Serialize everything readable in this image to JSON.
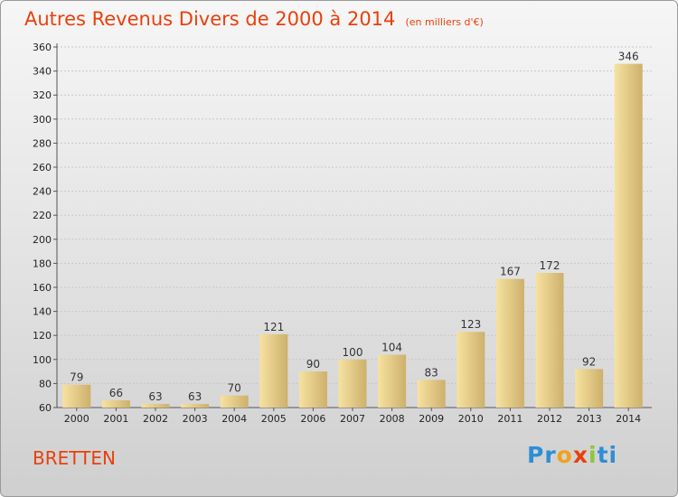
{
  "header": {
    "title": "Autres Revenus Divers de 2000 à 2014",
    "subtitle": "(en milliers d'€)"
  },
  "footer": {
    "commune": "BRETTEN",
    "logo_text": "Proxiti"
  },
  "colors": {
    "title": "#e8400c",
    "bar_light": "#f7df96",
    "bar_dark": "#c9ad6a"
  },
  "chart_data": {
    "type": "bar",
    "title": "Autres Revenus Divers de 2000 à 2014",
    "subtitle": "(en milliers d'€)",
    "xlabel": "",
    "ylabel": "",
    "ylim": [
      60,
      360
    ],
    "yticks": [
      60,
      80,
      100,
      120,
      140,
      160,
      180,
      200,
      220,
      240,
      260,
      280,
      300,
      320,
      340,
      360
    ],
    "grid": true,
    "categories": [
      "2000",
      "2001",
      "2002",
      "2003",
      "2004",
      "2005",
      "2006",
      "2007",
      "2008",
      "2009",
      "2010",
      "2011",
      "2012",
      "2013",
      "2014"
    ],
    "values": [
      79,
      66,
      63,
      63,
      70,
      121,
      90,
      100,
      104,
      83,
      123,
      167,
      172,
      92,
      346
    ]
  }
}
